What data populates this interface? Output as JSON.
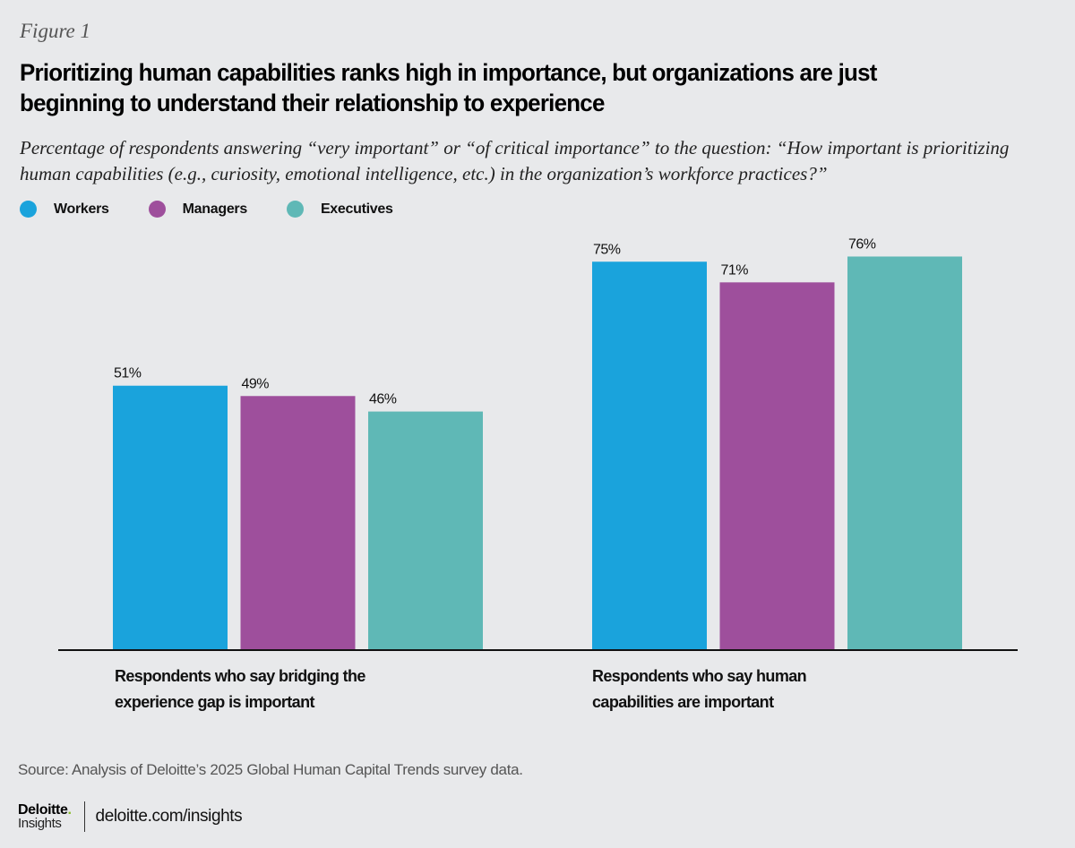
{
  "figure_label": "Figure 1",
  "chart_data": {
    "type": "bar",
    "title": "Prioritizing human capabilities ranks high in importance, but organizations are just beginning to understand their relationship to experience",
    "subtitle": "Percentage of respondents answering “very important” or “of critical importance” to the question: “How important is prioritizing human capabilities (e.g., curiosity, emotional intelligence, etc.) in the organization’s workforce practices?”",
    "categories": [
      "Respondents who say bridging the experience gap is important",
      "Respondents who say human capabilities are important"
    ],
    "category_lines": [
      [
        "Respondents who say bridging the",
        "experience gap is important"
      ],
      [
        "Respondents who say human",
        "capabilities are important"
      ]
    ],
    "series": [
      {
        "name": "Workers",
        "color": "#1aa3dc",
        "values": [
          51,
          75
        ]
      },
      {
        "name": "Managers",
        "color": "#9e4f9c",
        "values": [
          49,
          71
        ]
      },
      {
        "name": "Executives",
        "color": "#5fb8b6",
        "values": [
          46,
          76
        ]
      }
    ],
    "value_suffix": "%",
    "xlabel": "",
    "ylabel": "",
    "ylim": [
      0,
      76
    ],
    "grid": false,
    "legend_position": "top-left",
    "source": "Source: Analysis of Deloitte’s 2025 Global Human Capital Trends survey data."
  },
  "footer": {
    "brand": "Deloitte",
    "brand_dot": ".",
    "sub": "Insights",
    "url": "deloitte.com/insights"
  }
}
